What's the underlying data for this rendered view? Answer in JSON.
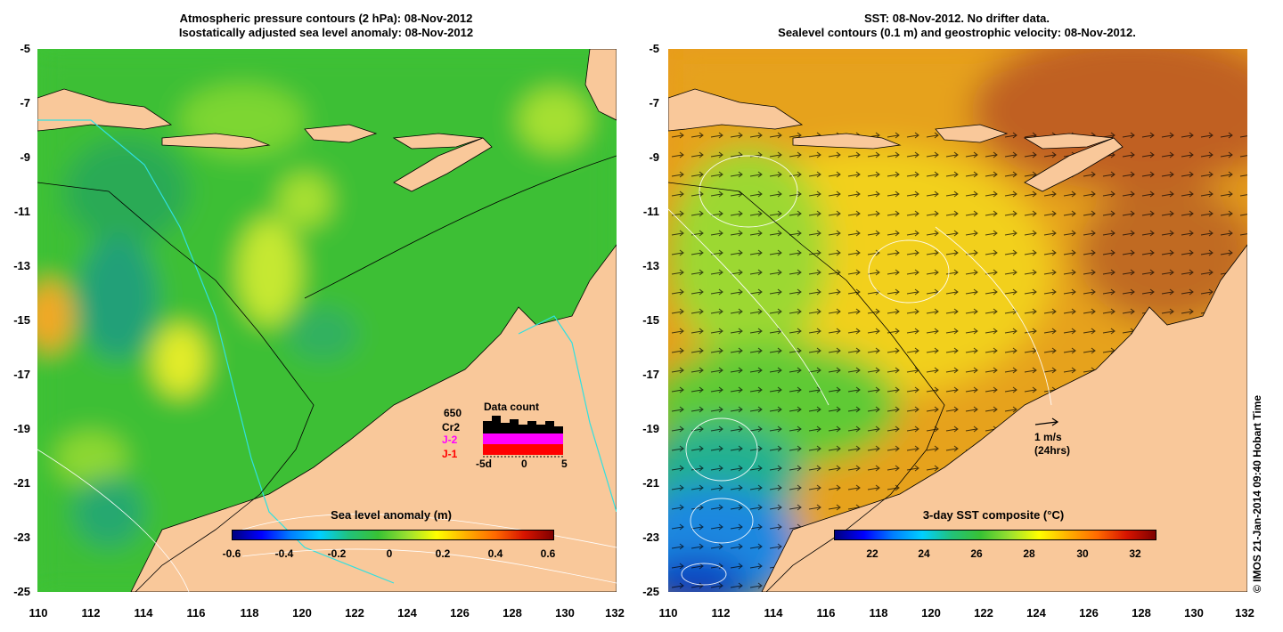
{
  "left": {
    "title_line1": "Atmospheric pressure contours (2 hPa): 08-Nov-2012",
    "title_line2": "Isostatically adjusted sea level anomaly: 08-Nov-2012",
    "colorbar": {
      "title": "Sea level anomaly (m)",
      "labels": [
        "-0.6",
        "-0.4",
        "-0.2",
        "0",
        "0.2",
        "0.4",
        "0.6"
      ]
    },
    "data_count": {
      "title": "Data count",
      "total": "650",
      "sat1": "Cr2",
      "sat2": "J-2",
      "sat3": "J-1",
      "sat2_color": "#ff00ff",
      "sat3_color": "#ff0000",
      "axis_labels": [
        "-5d",
        "0",
        "5"
      ]
    }
  },
  "right": {
    "title_line1": "SST: 08-Nov-2012. No drifter data.",
    "title_line2": "Sealevel contours (0.1 m) and geostrophic velocity: 08-Nov-2012.",
    "colorbar": {
      "title": "3-day SST composite (°C)",
      "labels": [
        "22",
        "24",
        "26",
        "28",
        "30",
        "32"
      ]
    },
    "velocity_scale": {
      "label": "1 m/s",
      "sublabel": "(24hrs)"
    }
  },
  "axes": {
    "x_ticks": [
      "110",
      "112",
      "114",
      "116",
      "118",
      "120",
      "122",
      "124",
      "126",
      "128",
      "130",
      "132"
    ],
    "y_ticks": [
      "-5",
      "-7",
      "-9",
      "-11",
      "-13",
      "-15",
      "-17",
      "-19",
      "-21",
      "-23",
      "-25"
    ]
  },
  "credit": "© IMOS 21-Jan-2014 09:40 Hobart Time",
  "colors": {
    "land": "#f9c89a",
    "ocean_green": "#39c234",
    "bathymetry_line": "#30e0e0"
  }
}
